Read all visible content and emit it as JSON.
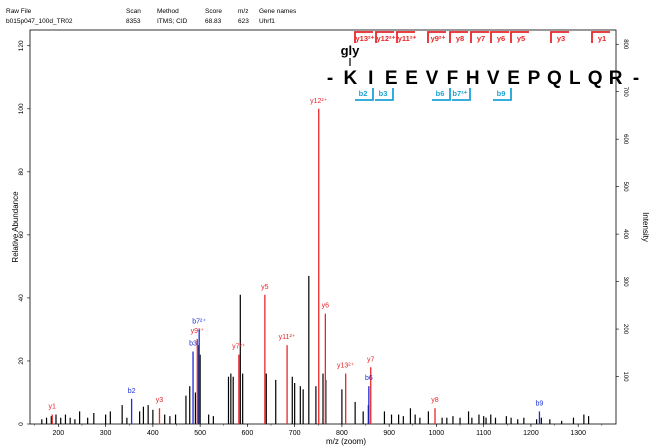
{
  "header": {
    "columns": [
      "Raw File",
      "Scan",
      "Method",
      "Score",
      "m/z",
      "Gene names"
    ],
    "values": [
      "b015p047_100d_TR02",
      "8353",
      "ITMS; CID",
      "68.83",
      "623",
      "Uhrf1"
    ]
  },
  "peptide": {
    "modification": "gly",
    "sequence": [
      "-",
      "K",
      "I",
      "E",
      "E",
      "V",
      "F",
      "H",
      "V",
      "E",
      "P",
      "Q",
      "L",
      "Q",
      "R",
      "-"
    ],
    "y_labels": [
      "y13²⁺",
      "y12²⁺",
      "y11²⁺",
      "y9²⁺",
      "y8",
      "y7",
      "y6",
      "y5",
      "y3",
      "y1"
    ],
    "b_labels": [
      "b2",
      "b3",
      "b6",
      "b7²⁺",
      "b9"
    ]
  },
  "colors": {
    "y_ion": "#e8262a",
    "b_ion": "#1a2fd6",
    "b_box": "#1ba3d8",
    "other": "#000000",
    "pink": "#d97ab0"
  },
  "chart_data": {
    "type": "bar",
    "xlabel": "m/z (zoom)",
    "ylabel_left": "Relative Abundance",
    "ylabel_right": "Intensity",
    "xlim": [
      140,
      1380
    ],
    "ylim_left": [
      0,
      125
    ],
    "x_ticks": [
      200,
      300,
      400,
      500,
      600,
      700,
      800,
      900,
      1000,
      1100,
      1200,
      1300
    ],
    "y_ticks_left": [
      0,
      20,
      40,
      60,
      80,
      100,
      120
    ],
    "y_ticks_right": [
      100,
      200,
      300,
      400,
      500,
      600,
      700,
      800
    ],
    "peaks_black": [
      [
        165,
        1.5
      ],
      [
        175,
        2
      ],
      [
        185,
        2.5
      ],
      [
        195,
        3
      ],
      [
        205,
        2
      ],
      [
        215,
        3
      ],
      [
        225,
        2
      ],
      [
        235,
        1.5
      ],
      [
        245,
        4
      ],
      [
        262,
        2
      ],
      [
        275,
        3.5
      ],
      [
        300,
        3
      ],
      [
        310,
        4
      ],
      [
        335,
        6
      ],
      [
        345,
        2
      ],
      [
        372,
        4
      ],
      [
        380,
        5.5
      ],
      [
        390,
        6
      ],
      [
        400,
        4.5
      ],
      [
        425,
        3
      ],
      [
        436,
        2.5
      ],
      [
        448,
        3
      ],
      [
        470,
        9
      ],
      [
        478,
        12
      ],
      [
        490,
        10
      ],
      [
        497,
        25
      ],
      [
        500,
        22
      ],
      [
        518,
        3
      ],
      [
        528,
        2.5
      ],
      [
        560,
        15
      ],
      [
        565,
        16
      ],
      [
        570,
        15
      ],
      [
        585,
        41
      ],
      [
        590,
        16
      ],
      [
        640,
        16
      ],
      [
        660,
        14
      ],
      [
        695,
        15
      ],
      [
        700,
        13
      ],
      [
        712,
        12
      ],
      [
        718,
        11
      ],
      [
        730,
        47
      ],
      [
        745,
        12
      ],
      [
        760,
        16
      ],
      [
        766,
        14
      ],
      [
        800,
        11
      ],
      [
        828,
        7
      ],
      [
        845,
        4
      ],
      [
        856,
        6
      ],
      [
        890,
        4
      ],
      [
        905,
        3
      ],
      [
        920,
        3
      ],
      [
        930,
        2.5
      ],
      [
        945,
        5
      ],
      [
        955,
        3
      ],
      [
        965,
        2
      ],
      [
        983,
        4
      ],
      [
        1012,
        2
      ],
      [
        1022,
        2
      ],
      [
        1035,
        2.5
      ],
      [
        1050,
        2
      ],
      [
        1068,
        4
      ],
      [
        1075,
        2
      ],
      [
        1090,
        3
      ],
      [
        1100,
        2.5
      ],
      [
        1105,
        2
      ],
      [
        1115,
        3
      ],
      [
        1125,
        2
      ],
      [
        1148,
        2.5
      ],
      [
        1158,
        2
      ],
      [
        1172,
        1.5
      ],
      [
        1185,
        2
      ],
      [
        1212,
        1.5
      ],
      [
        1222,
        2
      ],
      [
        1240,
        1.5
      ],
      [
        1265,
        1
      ],
      [
        1290,
        2
      ],
      [
        1312,
        3
      ],
      [
        1322,
        2.5
      ]
    ],
    "peaks_y": [
      {
        "mz": 187,
        "rel": 3,
        "label": "y1"
      },
      {
        "mz": 414,
        "rel": 5,
        "label": "y3"
      },
      {
        "mz": 494,
        "rel": 27,
        "label": "y9²⁺"
      },
      {
        "mz": 582,
        "rel": 22,
        "label": "y7²⁺"
      },
      {
        "mz": 637,
        "rel": 41,
        "label": "y5"
      },
      {
        "mz": 684,
        "rel": 25,
        "label": "y11²⁺"
      },
      {
        "mz": 751,
        "rel": 100,
        "label": "y12²⁺"
      },
      {
        "mz": 765,
        "rel": 35,
        "label": "y6"
      },
      {
        "mz": 808,
        "rel": 16,
        "label": "y13²⁺"
      },
      {
        "mz": 861,
        "rel": 18,
        "label": "y7"
      },
      {
        "mz": 997,
        "rel": 5,
        "label": "y8"
      }
    ],
    "peaks_b": [
      {
        "mz": 355,
        "rel": 8,
        "label": "b2"
      },
      {
        "mz": 485,
        "rel": 23,
        "label": "b3"
      },
      {
        "mz": 498,
        "rel": 30,
        "label": "b7²⁺"
      },
      {
        "mz": 857,
        "rel": 12,
        "label": "b6"
      },
      {
        "mz": 1218,
        "rel": 4,
        "label": "b9"
      }
    ]
  }
}
